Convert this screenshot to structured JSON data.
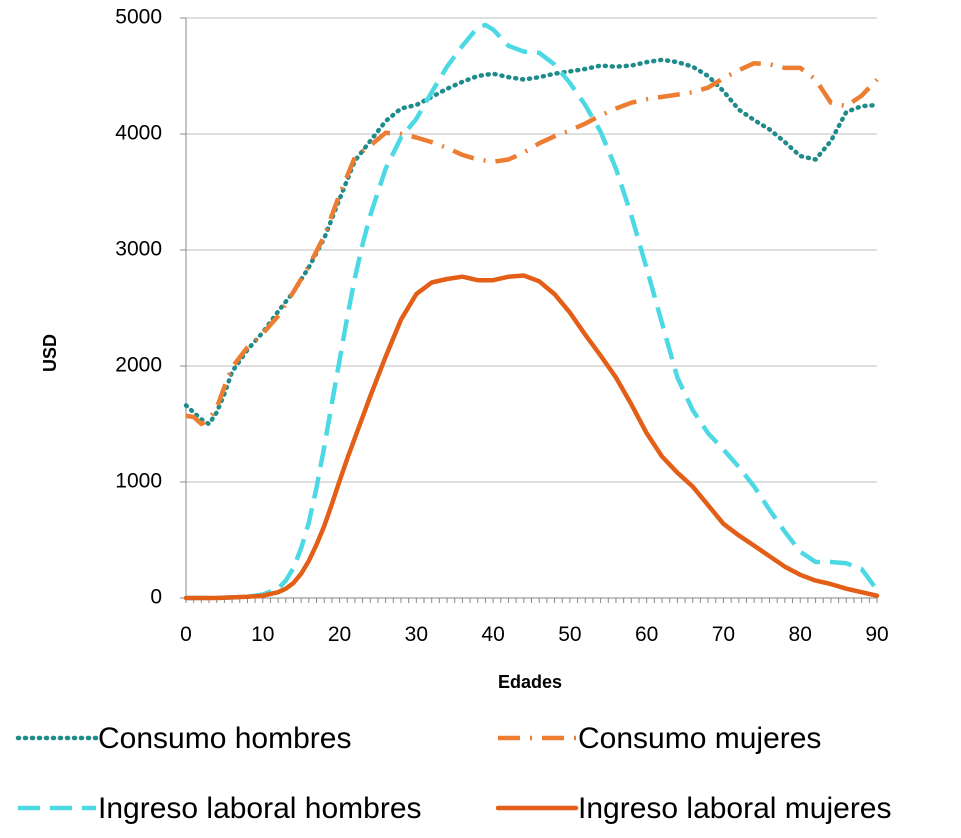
{
  "chart_data": {
    "type": "line",
    "title": "",
    "xlabel": "Edades",
    "ylabel": "USD",
    "xlim": [
      0,
      90
    ],
    "ylim": [
      0,
      5000
    ],
    "xticks": [
      0,
      10,
      20,
      30,
      40,
      50,
      60,
      70,
      80,
      90
    ],
    "yticks": [
      0,
      1000,
      2000,
      3000,
      4000,
      5000
    ],
    "grid": "horizontal",
    "legend_position": "bottom",
    "series": [
      {
        "name": "Consumo hombres",
        "color": "#1f8b8b",
        "style": "dotted",
        "x": [
          0,
          1,
          2,
          3,
          4,
          5,
          6,
          8,
          10,
          12,
          14,
          16,
          18,
          20,
          22,
          24,
          26,
          28,
          30,
          32,
          34,
          36,
          38,
          40,
          42,
          44,
          46,
          48,
          50,
          52,
          54,
          56,
          58,
          60,
          62,
          64,
          66,
          68,
          70,
          72,
          74,
          76,
          78,
          80,
          82,
          84,
          86,
          88,
          90
        ],
        "y": [
          1660,
          1600,
          1540,
          1500,
          1600,
          1760,
          1950,
          2140,
          2290,
          2470,
          2640,
          2850,
          3100,
          3440,
          3770,
          3940,
          4110,
          4220,
          4250,
          4320,
          4390,
          4450,
          4500,
          4520,
          4490,
          4470,
          4490,
          4520,
          4540,
          4560,
          4590,
          4580,
          4590,
          4620,
          4640,
          4620,
          4580,
          4500,
          4370,
          4210,
          4120,
          4040,
          3930,
          3810,
          3780,
          3940,
          4190,
          4240,
          4250
        ]
      },
      {
        "name": "Consumo mujeres",
        "color": "#ed7d31",
        "style": "dashdot",
        "x": [
          0,
          1,
          2,
          3,
          4,
          5,
          6,
          8,
          10,
          12,
          14,
          16,
          18,
          20,
          22,
          24,
          26,
          28,
          30,
          32,
          34,
          36,
          38,
          40,
          42,
          44,
          46,
          48,
          50,
          52,
          54,
          56,
          58,
          60,
          62,
          64,
          66,
          68,
          70,
          72,
          74,
          76,
          78,
          80,
          82,
          84,
          86,
          88,
          90
        ],
        "y": [
          1570,
          1560,
          1500,
          1540,
          1640,
          1820,
          1990,
          2160,
          2280,
          2430,
          2640,
          2860,
          3120,
          3480,
          3800,
          3900,
          4010,
          4000,
          3970,
          3930,
          3880,
          3820,
          3780,
          3760,
          3780,
          3840,
          3920,
          3980,
          4030,
          4090,
          4160,
          4220,
          4270,
          4300,
          4320,
          4340,
          4360,
          4400,
          4480,
          4550,
          4610,
          4600,
          4570,
          4570,
          4470,
          4270,
          4240,
          4330,
          4470
        ]
      },
      {
        "name": "Ingreso laboral hombres",
        "color": "#4dd9e4",
        "style": "dashed",
        "x": [
          0,
          2,
          4,
          6,
          8,
          10,
          12,
          13,
          14,
          15,
          16,
          17,
          18,
          19,
          20,
          21,
          22,
          23,
          24,
          26,
          28,
          30,
          32,
          34,
          36,
          38,
          39,
          40,
          42,
          44,
          46,
          48,
          50,
          52,
          54,
          56,
          58,
          60,
          62,
          64,
          66,
          68,
          70,
          72,
          74,
          76,
          78,
          80,
          82,
          84,
          86,
          88,
          90
        ],
        "y": [
          0,
          0,
          0,
          5,
          10,
          30,
          80,
          150,
          260,
          430,
          650,
          950,
          1300,
          1680,
          2050,
          2420,
          2760,
          3050,
          3300,
          3700,
          3970,
          4130,
          4360,
          4580,
          4760,
          4920,
          4940,
          4900,
          4760,
          4710,
          4700,
          4600,
          4440,
          4250,
          4020,
          3700,
          3300,
          2840,
          2370,
          1900,
          1620,
          1420,
          1280,
          1130,
          960,
          760,
          570,
          400,
          310,
          310,
          300,
          250,
          70
        ]
      },
      {
        "name": "Ingreso laboral mujeres",
        "color": "#e35e16",
        "style": "solid",
        "x": [
          0,
          2,
          4,
          6,
          8,
          10,
          12,
          13,
          14,
          15,
          16,
          17,
          18,
          19,
          20,
          21,
          22,
          24,
          26,
          28,
          30,
          32,
          34,
          36,
          38,
          40,
          42,
          44,
          46,
          48,
          50,
          52,
          54,
          56,
          58,
          60,
          62,
          64,
          66,
          68,
          70,
          72,
          74,
          76,
          78,
          80,
          82,
          84,
          86,
          88,
          90
        ],
        "y": [
          0,
          0,
          0,
          5,
          10,
          20,
          50,
          80,
          130,
          210,
          320,
          460,
          620,
          810,
          1010,
          1200,
          1380,
          1740,
          2080,
          2400,
          2620,
          2720,
          2750,
          2770,
          2740,
          2740,
          2770,
          2780,
          2730,
          2620,
          2460,
          2270,
          2090,
          1900,
          1670,
          1420,
          1220,
          1080,
          960,
          800,
          640,
          540,
          450,
          360,
          270,
          200,
          150,
          120,
          80,
          50,
          20
        ]
      }
    ]
  }
}
